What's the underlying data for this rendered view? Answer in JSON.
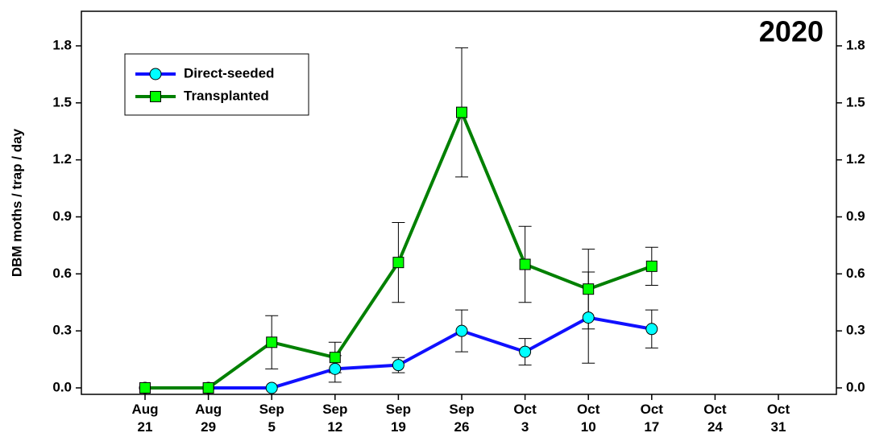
{
  "chart_data": {
    "type": "line",
    "annotation": "2020",
    "y_label": "DBM moths / trap / day",
    "categories": [
      "Aug 21",
      "Aug 29",
      "Sep 5",
      "Sep 12",
      "Sep 19",
      "Sep 26",
      "Oct 3",
      "Oct 10",
      "Oct 17",
      "Oct 24",
      "Oct 31"
    ],
    "series": [
      {
        "name": "Direct-seeded",
        "color": "#1010ff",
        "marker_color": "#00ffff",
        "marker": "circle",
        "values": [
          0,
          0,
          0,
          0.1,
          0.12,
          0.3,
          0.19,
          0.37,
          0.31,
          null,
          null
        ],
        "errors": [
          null,
          null,
          null,
          0.07,
          0.04,
          0.11,
          0.07,
          0.24,
          0.1,
          null,
          null
        ]
      },
      {
        "name": "Transplanted",
        "color": "#008000",
        "marker_color": "#00ff00",
        "marker": "square",
        "values": [
          0,
          0,
          0.24,
          0.16,
          0.66,
          1.45,
          0.65,
          0.52,
          0.64,
          null,
          null
        ],
        "errors": [
          null,
          null,
          0.14,
          0.08,
          0.21,
          0.34,
          0.2,
          0.21,
          0.1,
          null,
          null
        ]
      }
    ],
    "ylim": [
      -0.034,
      1.982
    ],
    "yticks": [
      {
        "value": 0,
        "label": "0.0"
      },
      0.3,
      0.6,
      0.9,
      1.2,
      1.5,
      1.8
    ],
    "y2lim": [
      -0.034,
      1.982
    ],
    "y2ticks": [
      {
        "value": 0,
        "label": "0.0"
      },
      0.3,
      0.6,
      0.9,
      1.2,
      1.5,
      1.8
    ],
    "legend": "upper left"
  }
}
